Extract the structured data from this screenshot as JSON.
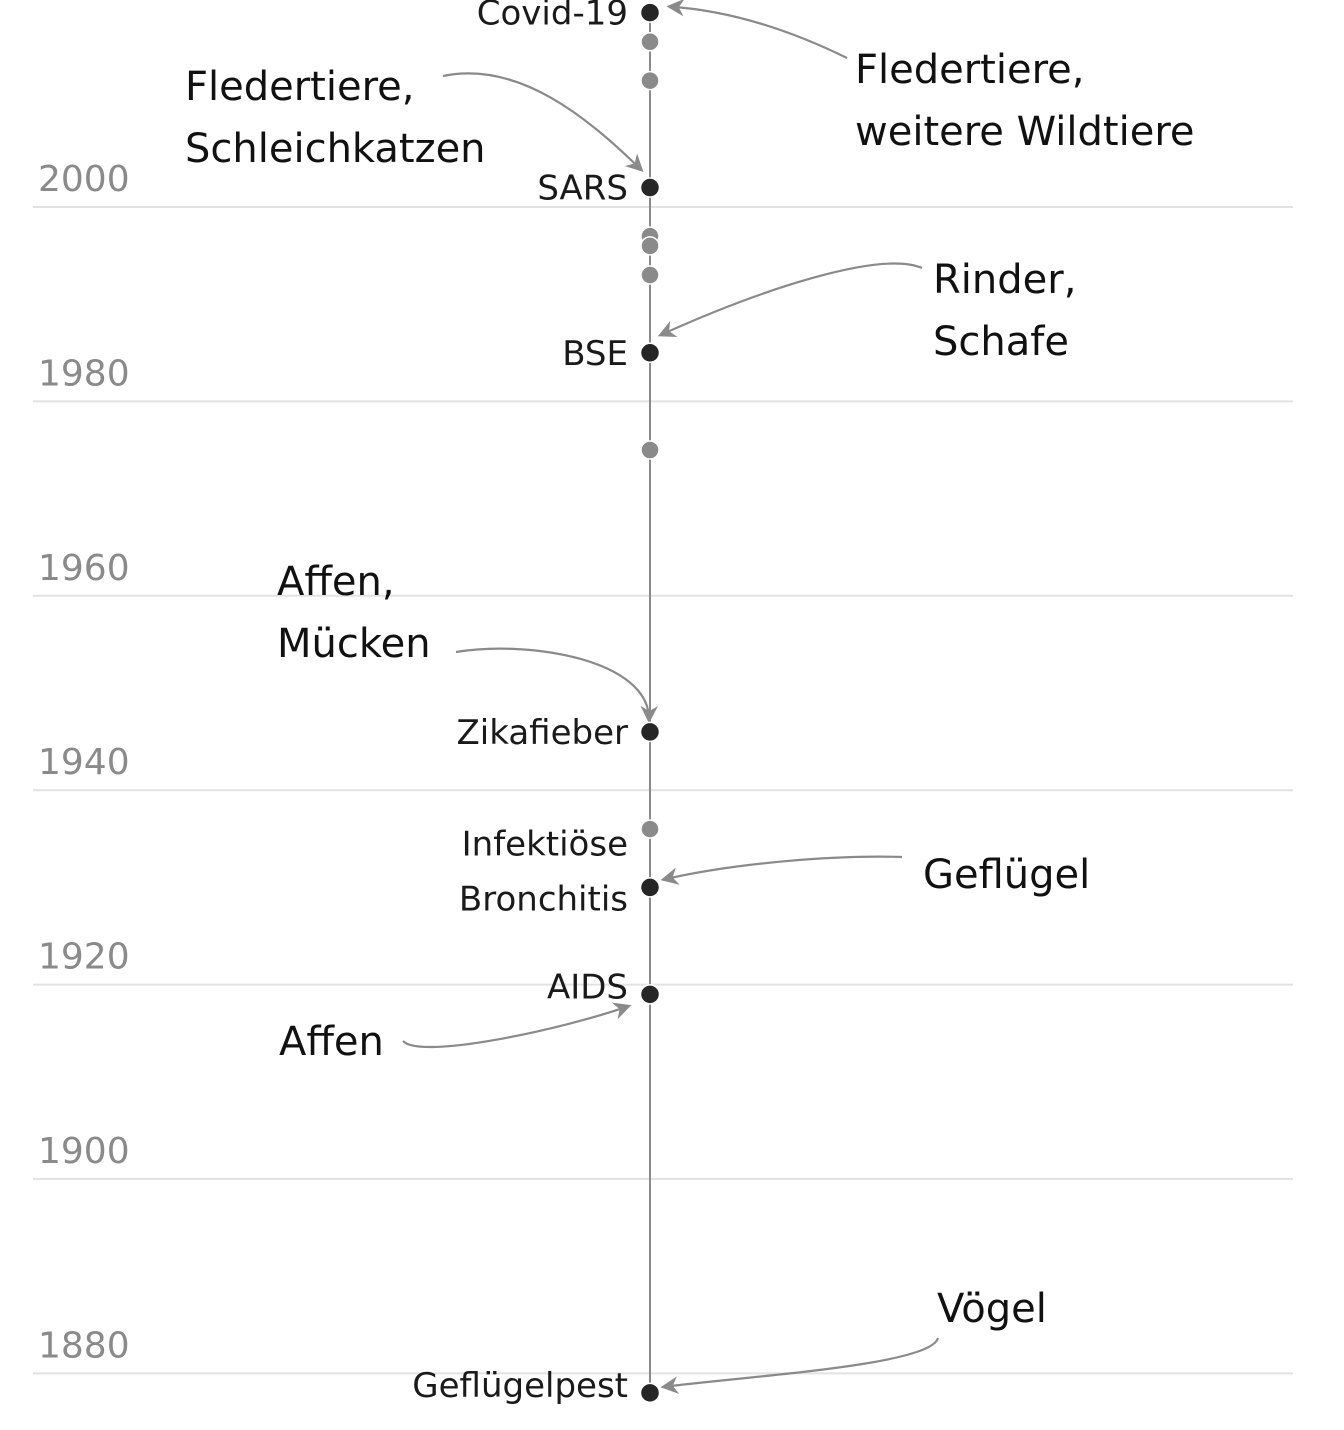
{
  "timeline": {
    "year_axis": [
      2000,
      1980,
      1960,
      1940,
      1920,
      1900,
      1880
    ],
    "events": [
      {
        "id": "covid",
        "name": [
          "Covid-19"
        ],
        "year": 2020,
        "highlight": true
      },
      {
        "id": "sars",
        "name": [
          "SARS"
        ],
        "year": 2002,
        "highlight": true
      },
      {
        "id": "bse",
        "name": [
          "BSE"
        ],
        "year": 1985,
        "highlight": true
      },
      {
        "id": "zika",
        "name": [
          "Zikafieber"
        ],
        "year": 1946,
        "highlight": true
      },
      {
        "id": "ib",
        "name": [
          "Infektiöse",
          "Bronchitis"
        ],
        "year": 1930,
        "highlight": true
      },
      {
        "id": "aids",
        "name": [
          "AIDS"
        ],
        "year": 1919,
        "highlight": true
      },
      {
        "id": "gp",
        "name": [
          "Geflügelpest"
        ],
        "year": 1878,
        "highlight": true
      }
    ],
    "minor_events": [
      2017,
      2013,
      1997,
      1996,
      1993,
      1975,
      1936
    ],
    "hosts": [
      {
        "id": "host-covid",
        "lines": [
          "Fledertiere,",
          "weitere Wildtiere"
        ],
        "target": "covid"
      },
      {
        "id": "host-sars",
        "lines": [
          "Fledertiere,",
          "Schleichkatzen"
        ],
        "target": "sars"
      },
      {
        "id": "host-bse",
        "lines": [
          "Rinder,",
          "Schafe"
        ],
        "target": "bse"
      },
      {
        "id": "host-zika",
        "lines": [
          "Affen,",
          "Mücken"
        ],
        "target": "zika"
      },
      {
        "id": "host-ib",
        "lines": [
          "Geflügel"
        ],
        "target": "ib"
      },
      {
        "id": "host-aids",
        "lines": [
          "Affen"
        ],
        "target": "aids"
      },
      {
        "id": "host-gp",
        "lines": [
          "Vögel"
        ],
        "target": "gp"
      }
    ]
  }
}
